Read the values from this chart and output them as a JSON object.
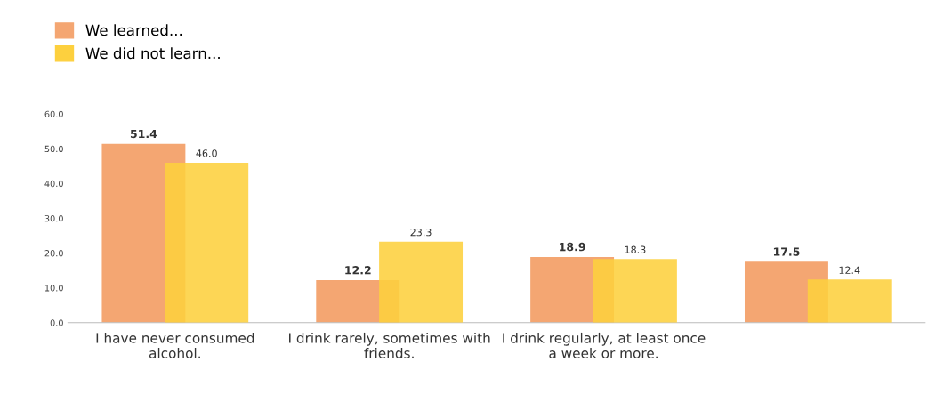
{
  "chart_data": {
    "type": "bar",
    "categories": [
      "I have never consumed\nalcohol.",
      "I drink rarely, sometimes with\nfriends.",
      "I drink regularly, at least once\na week or more.",
      null
    ],
    "series": [
      {
        "name": "We learned...",
        "color": "#f4a672",
        "values": [
          51.4,
          12.2,
          18.9,
          17.5
        ]
      },
      {
        "name": "We did not learn...",
        "color": "#fdd03e",
        "values": [
          46.0,
          23.3,
          18.3,
          12.4
        ]
      }
    ],
    "value_labels": [
      [
        "51.4",
        "12.2",
        "18.9",
        "17.5"
      ],
      [
        "46.0",
        "23.3",
        "18.3",
        "12.4"
      ]
    ],
    "ylim": [
      0,
      60
    ],
    "yticks": [
      {
        "value": 0,
        "label": "0.0"
      },
      {
        "value": 10,
        "label": "10.0"
      },
      {
        "value": 20,
        "label": "20.0"
      },
      {
        "value": 30,
        "label": "30.0"
      },
      {
        "value": 40,
        "label": "40.0"
      },
      {
        "value": 50,
        "label": "50.0"
      },
      {
        "value": 60,
        "label": "60.0"
      }
    ],
    "grid": false,
    "legend": "top left"
  }
}
